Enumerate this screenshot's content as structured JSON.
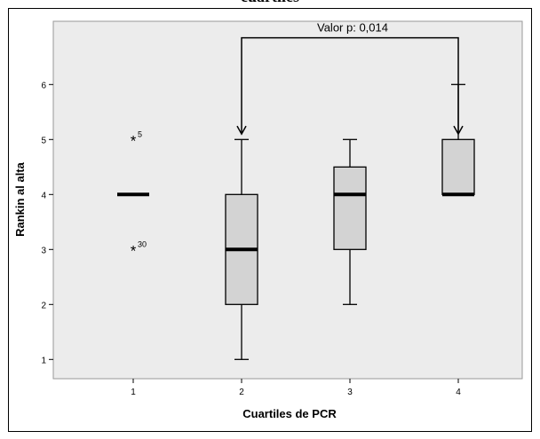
{
  "header": {
    "title_fragment": "cuartiles"
  },
  "chart_data": {
    "type": "boxplot",
    "xlabel": "Cuartiles de PCR",
    "ylabel": "Rankin al alta",
    "categories": [
      "1",
      "2",
      "3",
      "4"
    ],
    "y_ticks": [
      "1",
      "2",
      "3",
      "4",
      "5",
      "6"
    ],
    "ylim": [
      0.65,
      7.15
    ],
    "grid": false,
    "boxes": [
      {
        "category": "1",
        "min": 4,
        "q1": 4,
        "median": 4,
        "q3": 4,
        "max": 4
      },
      {
        "category": "2",
        "min": 1,
        "q1": 2,
        "median": 3,
        "q3": 4,
        "max": 5
      },
      {
        "category": "3",
        "min": 2,
        "q1": 3,
        "median": 4,
        "q3": 4.5,
        "max": 5
      },
      {
        "category": "4",
        "min": 4,
        "q1": 4,
        "median": 4,
        "q3": 5,
        "max": 6
      }
    ],
    "outliers": [
      {
        "category": "1",
        "value": 5,
        "label": "5"
      },
      {
        "category": "1",
        "value": 3,
        "label": "30"
      }
    ],
    "annotation": {
      "text": "Valor p: 0,014",
      "from": "2",
      "to": "4",
      "top_value": 6.85,
      "arrow_end_value": 5.1
    },
    "colors": {
      "plot_bg": "#ececec",
      "box_fill": "#d3d3d3",
      "median": "#000000",
      "line": "#000000"
    }
  }
}
